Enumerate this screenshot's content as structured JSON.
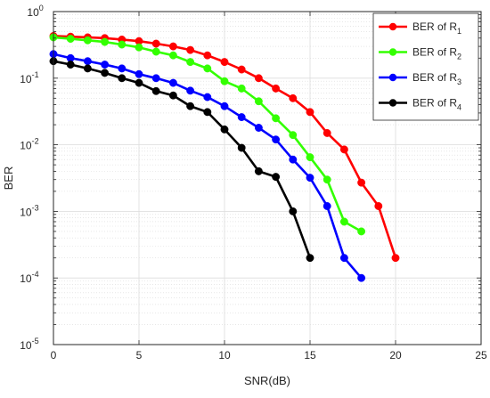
{
  "chart_data": {
    "type": "line",
    "title": "",
    "xlabel": "SNR(dB)",
    "ylabel": "BER",
    "xlim": [
      0,
      25
    ],
    "ylim": [
      1e-05,
      1
    ],
    "y_scale": "log",
    "grid": true,
    "minor_grid": true,
    "legend_position": "top-right",
    "x_ticks": [
      0,
      5,
      10,
      15,
      20,
      25
    ],
    "x_tick_labels": [
      "0",
      "5",
      "10",
      "15",
      "20",
      "25"
    ],
    "y_ticks": [
      {
        "value": 1,
        "base": "10",
        "exp": "0"
      },
      {
        "value": 0.1,
        "base": "10",
        "exp": "-1"
      },
      {
        "value": 0.01,
        "base": "10",
        "exp": "-2"
      },
      {
        "value": 0.001,
        "base": "10",
        "exp": "-3"
      },
      {
        "value": 0.0001,
        "base": "10",
        "exp": "-4"
      },
      {
        "value": 1e-05,
        "base": "10",
        "exp": "-5"
      }
    ],
    "series": [
      {
        "name": "BER of R1",
        "legend_main": "BER of R",
        "legend_sub": "1",
        "color": "#ff0000",
        "x": [
          0,
          1,
          2,
          3,
          4,
          5,
          6,
          7,
          8,
          9,
          10,
          11,
          12,
          13,
          14,
          15,
          16,
          17,
          18,
          19,
          20
        ],
        "y": [
          0.43,
          0.42,
          0.41,
          0.4,
          0.38,
          0.36,
          0.33,
          0.3,
          0.265,
          0.22,
          0.175,
          0.135,
          0.1,
          0.07,
          0.05,
          0.031,
          0.015,
          0.0085,
          0.0027,
          0.0012,
          0.0002
        ]
      },
      {
        "name": "BER of R2",
        "legend_main": "BER of R",
        "legend_sub": "2",
        "color": "#33ff00",
        "x": [
          0,
          1,
          2,
          3,
          4,
          5,
          6,
          7,
          8,
          9,
          10,
          11,
          12,
          13,
          14,
          15,
          16,
          17,
          18
        ],
        "y": [
          0.41,
          0.39,
          0.37,
          0.35,
          0.32,
          0.29,
          0.25,
          0.22,
          0.175,
          0.14,
          0.09,
          0.07,
          0.045,
          0.025,
          0.014,
          0.0065,
          0.003,
          0.0007,
          0.0005
        ]
      },
      {
        "name": "BER of R3",
        "legend_main": "BER of R",
        "legend_sub": "3",
        "color": "#0000ff",
        "x": [
          0,
          1,
          2,
          3,
          4,
          5,
          6,
          7,
          8,
          9,
          10,
          11,
          12,
          13,
          14,
          15,
          16,
          17,
          18
        ],
        "y": [
          0.23,
          0.2,
          0.18,
          0.16,
          0.14,
          0.115,
          0.1,
          0.085,
          0.065,
          0.052,
          0.038,
          0.026,
          0.018,
          0.012,
          0.006,
          0.0032,
          0.0012,
          0.0002,
          0.0001
        ]
      },
      {
        "name": "BER of R4",
        "legend_main": "BER of R",
        "legend_sub": "4",
        "color": "#000000",
        "x": [
          0,
          1,
          2,
          3,
          4,
          5,
          6,
          7,
          8,
          9,
          10,
          11,
          12,
          13,
          14,
          15
        ],
        "y": [
          0.18,
          0.16,
          0.14,
          0.12,
          0.1,
          0.085,
          0.064,
          0.055,
          0.038,
          0.031,
          0.017,
          0.009,
          0.004,
          0.0033,
          0.001,
          0.0002
        ]
      }
    ]
  }
}
